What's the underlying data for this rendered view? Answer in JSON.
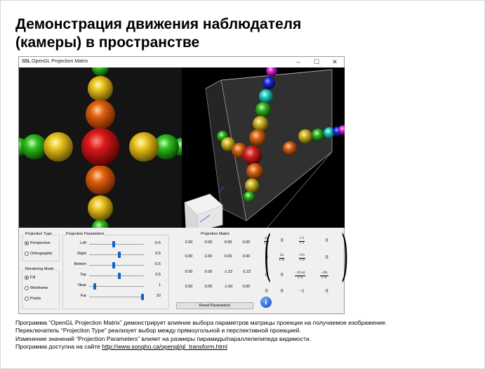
{
  "slide": {
    "title_line1": "Демонстрация движения наблюдателя",
    "title_line2": "(камеры) в пространстве"
  },
  "window": {
    "title": "OpenGL Projection Matrix",
    "app_icon": "SSL",
    "controls": {
      "minimize": "–",
      "maximize": "☐",
      "close": "✕"
    }
  },
  "projection_type": {
    "title": "Projection Type",
    "options": [
      {
        "label": "Perspective",
        "selected": true
      },
      {
        "label": "Orthographic",
        "selected": false
      }
    ]
  },
  "rendering_mode": {
    "title": "Rendering Mode",
    "options": [
      {
        "label": "Fill",
        "selected": true
      },
      {
        "label": "Wireframe",
        "selected": false
      },
      {
        "label": "Points",
        "selected": false
      }
    ]
  },
  "projection_parameters": {
    "title": "Projection Parameters",
    "params": [
      {
        "label": "Left",
        "value": "-0.5",
        "fraction": 0.45
      },
      {
        "label": "Right",
        "value": "0.5",
        "fraction": 0.55
      },
      {
        "label": "Bottom",
        "value": "-0.5",
        "fraction": 0.45
      },
      {
        "label": "Top",
        "value": "0.5",
        "fraction": 0.55
      },
      {
        "label": "Near",
        "value": "1",
        "fraction": 0.08
      },
      {
        "label": "Far",
        "value": "10",
        "fraction": 1.0
      }
    ]
  },
  "projection_matrix": {
    "title": "Projection Matrix",
    "rows": [
      [
        "2.00",
        "0.00",
        "0.00",
        "0.00"
      ],
      [
        "0.00",
        "2.00",
        "0.00",
        "0.00"
      ],
      [
        "0.00",
        "0.00",
        "-1.22",
        "-2.22"
      ],
      [
        "0.00",
        "0.00",
        "-1.00",
        "0.00"
      ]
    ],
    "formula": {
      "r0c0_num": "2n",
      "r0c0_den": "r−l",
      "r0c1": "0",
      "r0c2_num": "r+l",
      "r0c2_den": "r−l",
      "r0c3": "0",
      "r1c0": "0",
      "r1c1_num": "2n",
      "r1c1_den": "t−b",
      "r1c2_num": "t+b",
      "r1c2_den": "t−b",
      "r1c3": "0",
      "r2c0": "0",
      "r2c1": "0",
      "r2c2_num": "−(f+n)",
      "r2c2_den": "f−n",
      "r2c3_num": "−2fn",
      "r2c3_den": "f−n",
      "r3c0": "0",
      "r3c1": "0",
      "r3c2": "−1",
      "r3c3": "0"
    },
    "reset_label": "Reset Parameters",
    "info_glyph": "i"
  },
  "description": {
    "line1": "Программа “OpenGL Projection Matrix” демонстрирует влияние выбора параметров матрицы проекции на получаемое изображение.",
    "line2": "Переключатель “Projection Type” реализует выбор между прямоугольной и перспективной проекцией.",
    "line3": "Изменение значений “Projection Parameters” влияет на размеры пирамиды/параллелепипеда видимости.",
    "line4_prefix": "Программа доступна на сайте ",
    "link": "http://www.songho.ca/opengl/gl_transform.html"
  },
  "icons": {
    "info": "info-icon",
    "app": "app-icon"
  },
  "colors": {
    "sphere_red": "#c81414",
    "sphere_orange": "#e05a10",
    "sphere_yellow": "#e8c020",
    "sphere_green": "#2cc020",
    "sphere_cyan": "#20d8d0",
    "sphere_blue": "#1020e0",
    "sphere_magenta": "#d020d0",
    "slider_thumb": "#0a66c8"
  }
}
